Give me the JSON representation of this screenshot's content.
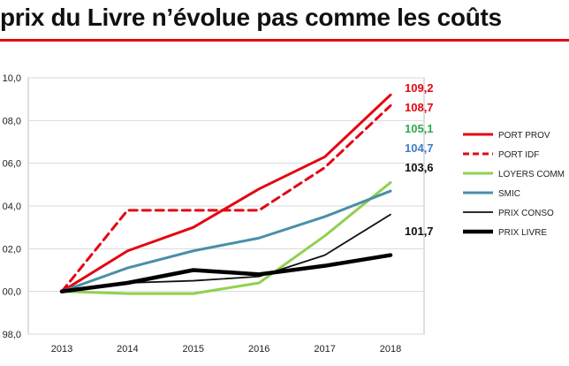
{
  "page": {
    "title": "prix du Livre n’évolue pas comme les coûts"
  },
  "chart_data": {
    "type": "line",
    "categories": [
      "2013",
      "2014",
      "2015",
      "2016",
      "2017",
      "2018"
    ],
    "y_tick_labels": [
      "98,0",
      "00,0",
      "02,0",
      "04,0",
      "06,0",
      "08,0",
      "10,0"
    ],
    "ylim": [
      98,
      110
    ],
    "grid": true,
    "legend_position": "right",
    "series": [
      {
        "name": "PORT PROV",
        "values": [
          100.0,
          101.9,
          103.0,
          104.8,
          106.3,
          109.2
        ],
        "end_label": "109,2",
        "color": "#e30613",
        "dash": "solid",
        "weight": "medium",
        "label_color": "#e30613"
      },
      {
        "name": "PORT IDF",
        "values": [
          100.0,
          103.8,
          103.8,
          103.8,
          105.8,
          108.7
        ],
        "end_label": "108,7",
        "color": "#e30613",
        "dash": "dashed",
        "weight": "medium",
        "label_color": "#e30613"
      },
      {
        "name": "LOYERS COMM",
        "values": [
          100.0,
          99.9,
          99.9,
          100.4,
          102.6,
          105.1
        ],
        "end_label": "105,1",
        "color": "#92d050",
        "dash": "solid",
        "weight": "medium",
        "label_color": "#2fa84f"
      },
      {
        "name": "SMIC",
        "values": [
          100.0,
          101.1,
          101.9,
          102.5,
          103.5,
          104.7
        ],
        "end_label": "104,7",
        "color": "#4a8fa8",
        "dash": "solid",
        "weight": "medium",
        "label_color": "#3d7cc9"
      },
      {
        "name": "PRIX CONSO",
        "values": [
          100.0,
          100.4,
          100.5,
          100.7,
          101.7,
          103.6
        ],
        "end_label": "103,6",
        "color": "#111111",
        "dash": "solid",
        "weight": "thin",
        "label_color": "#111111"
      },
      {
        "name": "PRIX LIVRE",
        "values": [
          100.0,
          100.4,
          101.0,
          100.8,
          101.2,
          101.7
        ],
        "end_label": "101,7",
        "color": "#000000",
        "dash": "solid",
        "weight": "thick",
        "label_color": "#111111"
      }
    ]
  }
}
